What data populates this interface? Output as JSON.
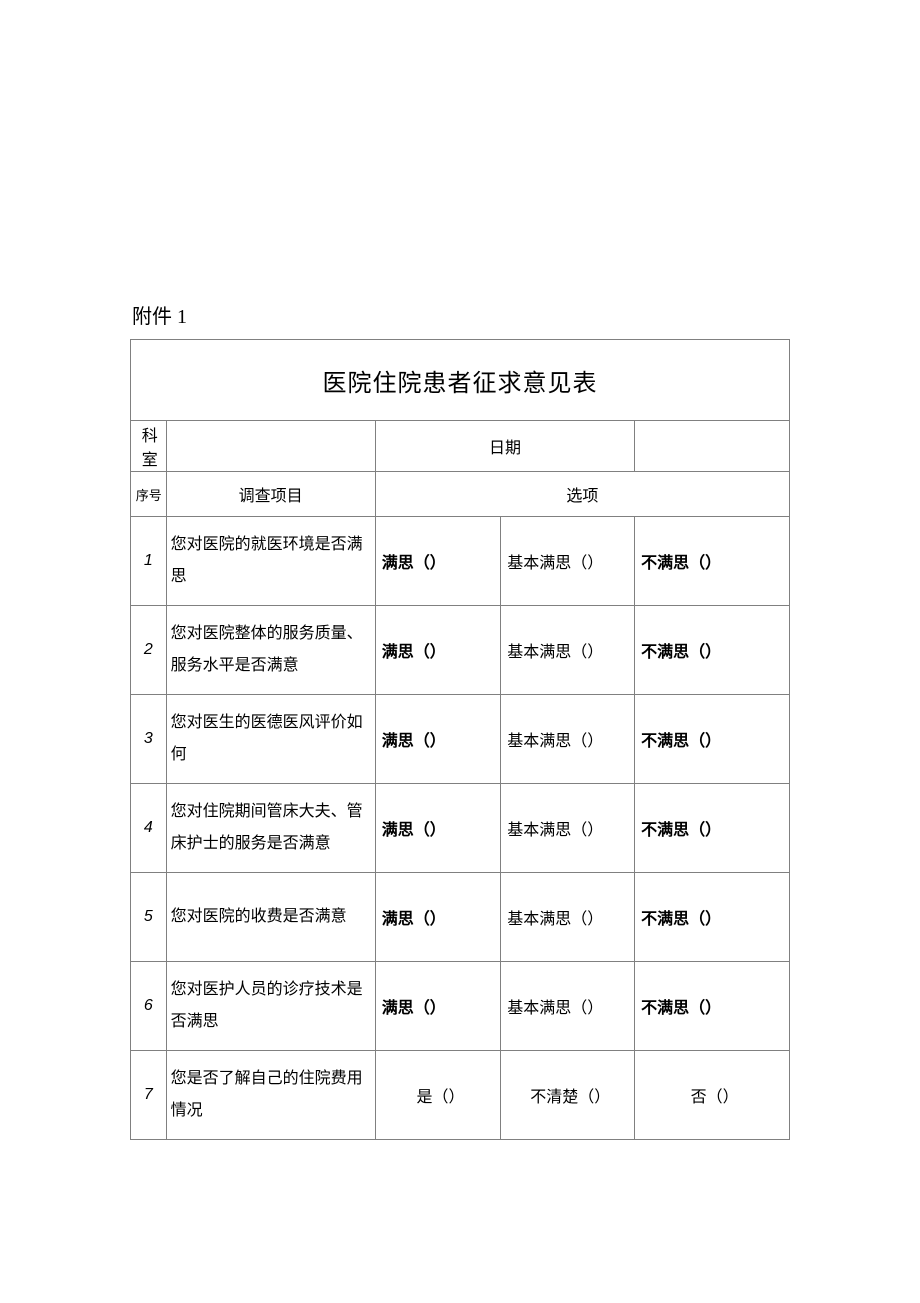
{
  "colors": {
    "text": "#000000",
    "border": "#808080",
    "background": "#ffffff"
  },
  "typography": {
    "body_font": "SimSun",
    "title_fontsize_pt": 18,
    "body_fontsize_pt": 12,
    "line_height": 2.0
  },
  "attachment_label": "附件 1",
  "form": {
    "title": "医院住院患者征求意见表",
    "meta": {
      "dept_label": "科室",
      "dept_value": "",
      "date_label": "日期",
      "date_value": ""
    },
    "headers": {
      "seq": "序号",
      "item": "调查项目",
      "options": "选项"
    },
    "option_labels": {
      "satisfied": "满思（）",
      "basic": "基本满思（）",
      "unsatisfied": "不满思（）",
      "yes": "是（）",
      "unclear": "不清楚（）",
      "no": "否（）"
    },
    "rows": [
      {
        "n": "1",
        "q": "您对医院的就医环境是否满思",
        "opts": [
          "satisfied",
          "basic",
          "unsatisfied"
        ],
        "bold": [
          true,
          false,
          true
        ]
      },
      {
        "n": "2",
        "q": "您对医院整体的服务质量、服务水平是否满意",
        "opts": [
          "satisfied",
          "basic",
          "unsatisfied"
        ],
        "bold": [
          true,
          false,
          true
        ]
      },
      {
        "n": "3",
        "q": "您对医生的医德医风评价如何",
        "opts": [
          "satisfied",
          "basic",
          "unsatisfied"
        ],
        "bold": [
          true,
          false,
          true
        ]
      },
      {
        "n": "4",
        "q": "您对住院期间管床大夫、管床护士的服务是否满意",
        "opts": [
          "satisfied",
          "basic",
          "unsatisfied"
        ],
        "bold": [
          true,
          false,
          true
        ]
      },
      {
        "n": "5",
        "q": "您对医院的收费是否满意",
        "opts": [
          "satisfied",
          "basic",
          "unsatisfied"
        ],
        "bold": [
          true,
          false,
          true
        ]
      },
      {
        "n": "6",
        "q": "您对医护人员的诊疗技术是否满思",
        "opts": [
          "satisfied",
          "basic",
          "unsatisfied"
        ],
        "bold": [
          true,
          false,
          true
        ]
      },
      {
        "n": "7",
        "q": "您是否了解自己的住院费用情况",
        "opts": [
          "yes",
          "unclear",
          "no"
        ],
        "bold": [
          false,
          false,
          false
        ],
        "center": true
      }
    ]
  }
}
